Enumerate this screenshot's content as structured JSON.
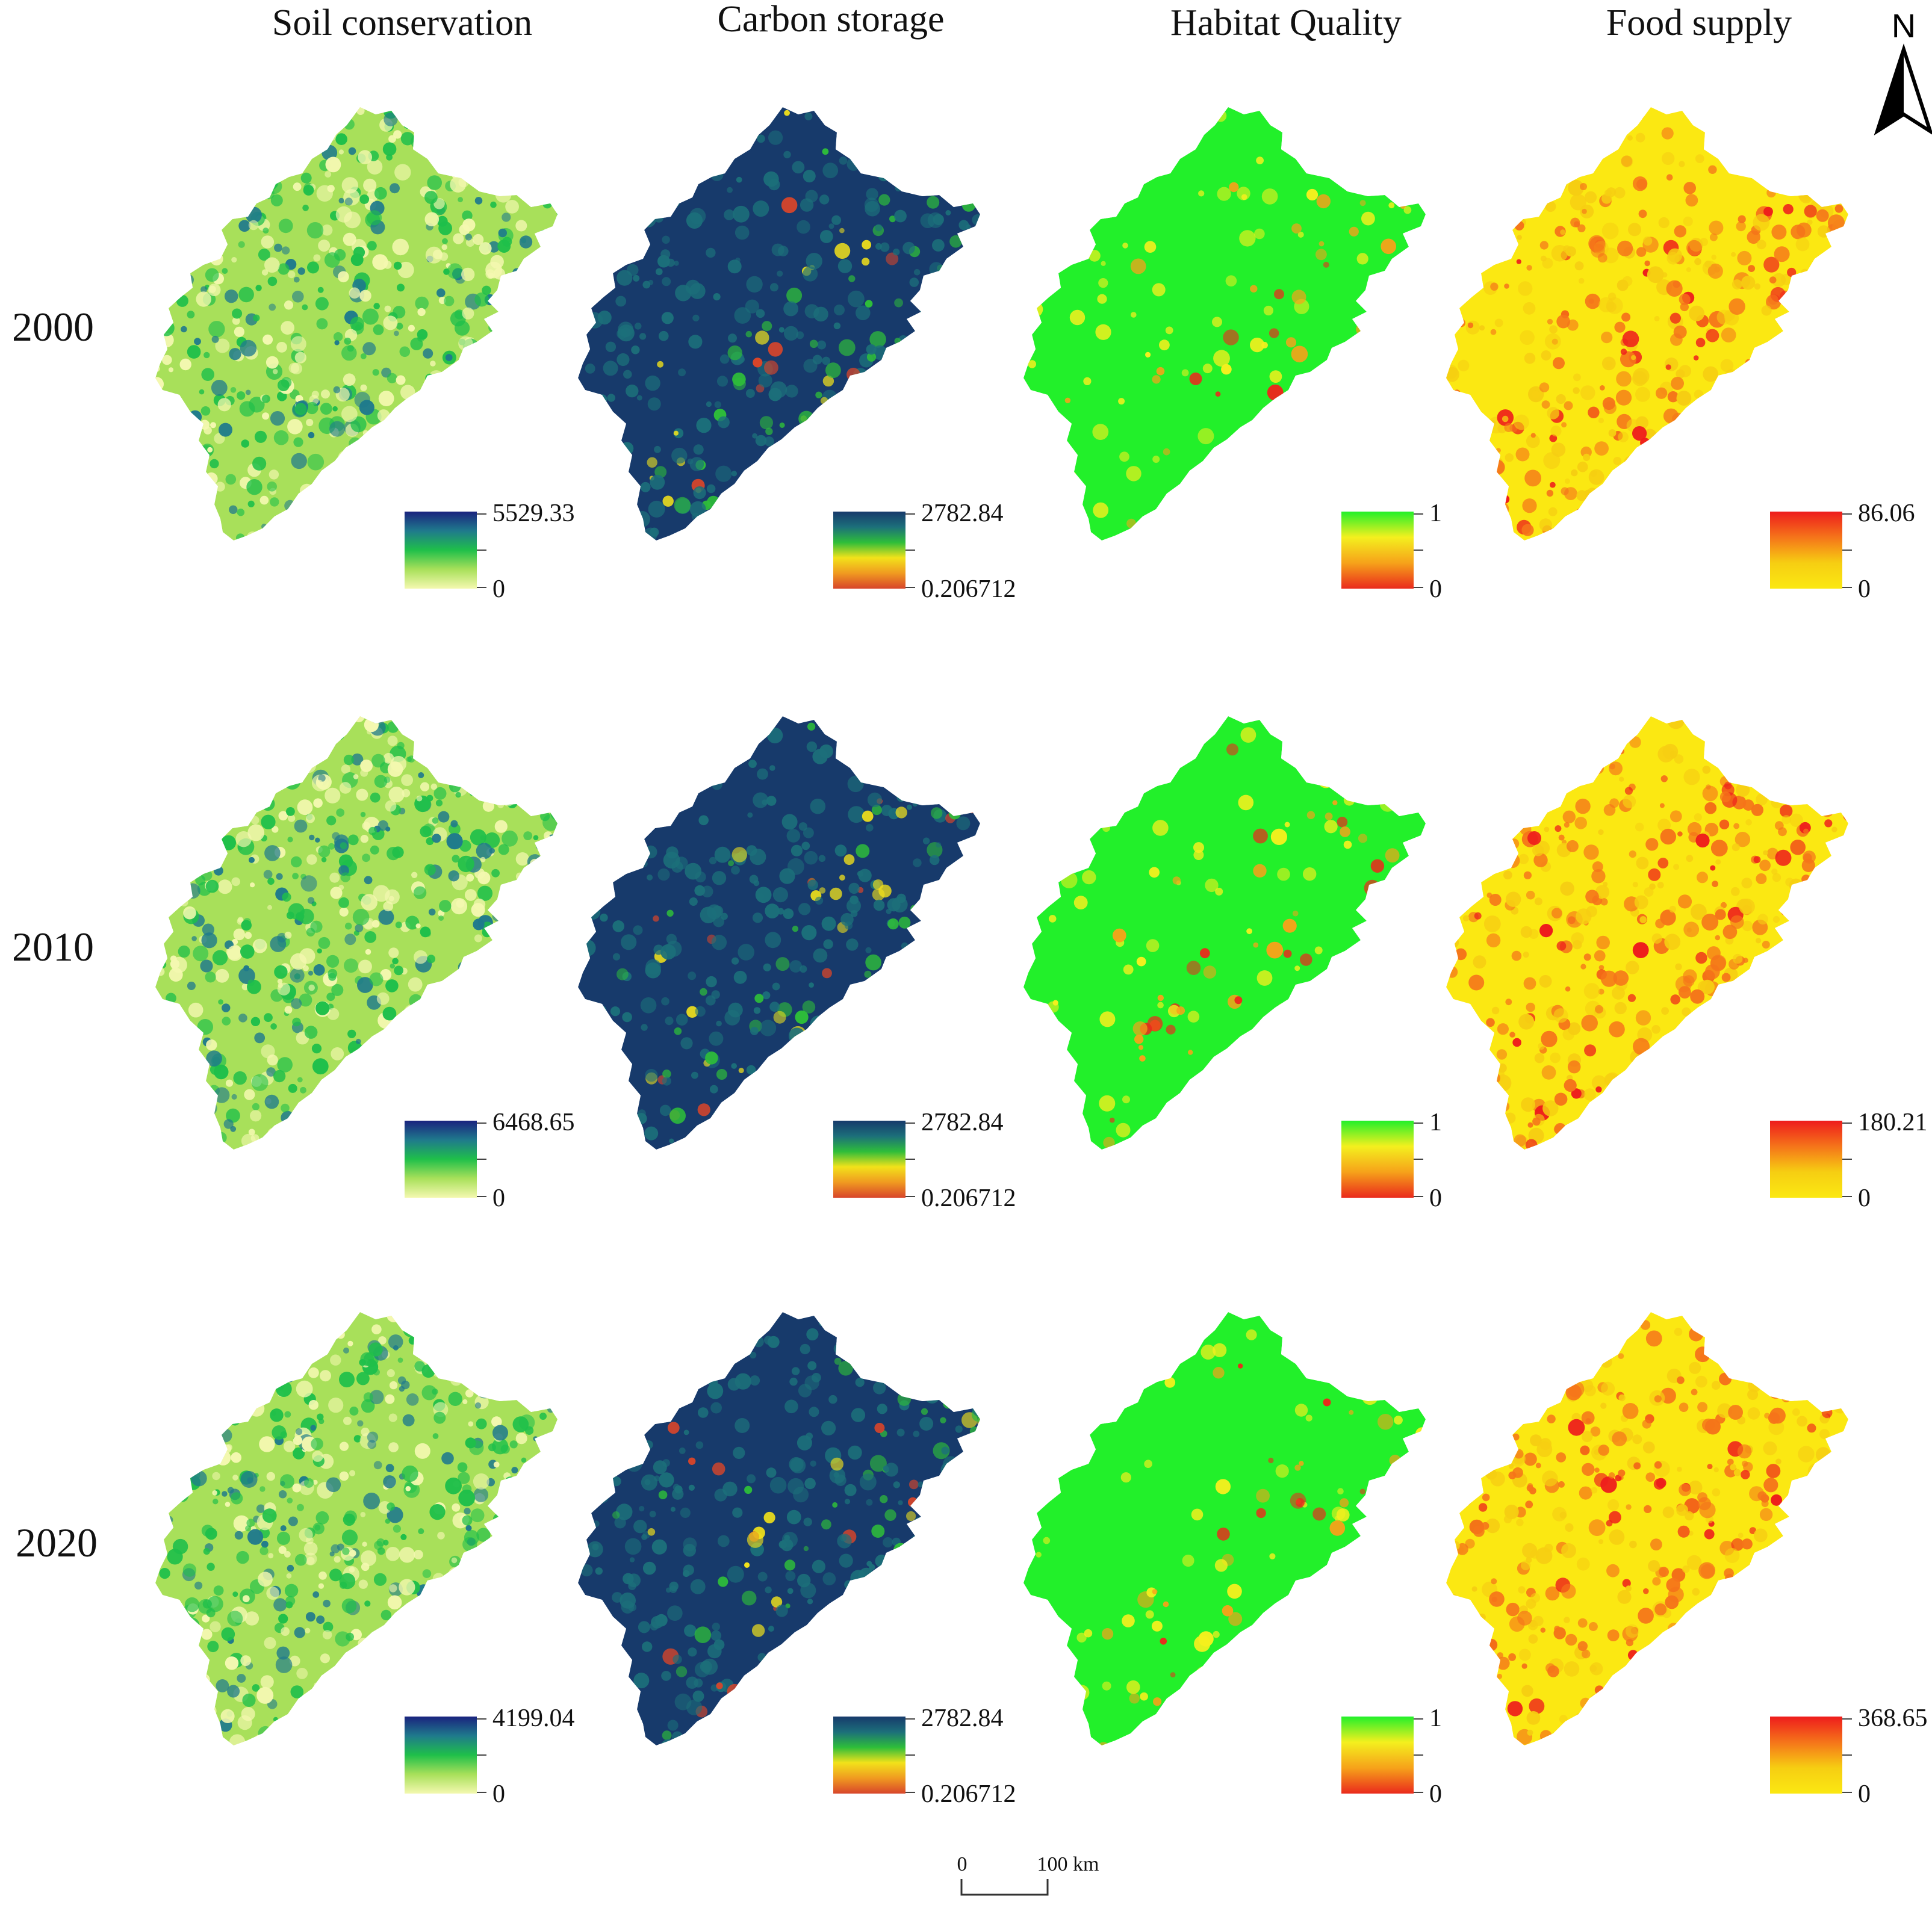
{
  "columns": [
    {
      "key": "soil",
      "title": "Soil conservation"
    },
    {
      "key": "carbon",
      "title": "Carbon storage"
    },
    {
      "key": "habitat",
      "title": "Habitat Quality"
    },
    {
      "key": "food",
      "title": "Food supply"
    }
  ],
  "rows": [
    {
      "year": "2000",
      "legends": {
        "soil": {
          "max": "5529.33",
          "min": "0"
        },
        "carbon": {
          "max": "2782.84",
          "min": "0.206712"
        },
        "habitat": {
          "max": "1",
          "min": "0"
        },
        "food": {
          "max": "86.06",
          "min": "0"
        }
      }
    },
    {
      "year": "2010",
      "legends": {
        "soil": {
          "max": "6468.65",
          "min": "0"
        },
        "carbon": {
          "max": "2782.84",
          "min": "0.206712"
        },
        "habitat": {
          "max": "1",
          "min": "0"
        },
        "food": {
          "max": "180.21",
          "min": "0"
        }
      }
    },
    {
      "year": "2020",
      "legends": {
        "soil": {
          "max": "4199.04",
          "min": "0"
        },
        "carbon": {
          "max": "2782.84",
          "min": "0.206712"
        },
        "habitat": {
          "max": "1",
          "min": "0"
        },
        "food": {
          "max": "368.65",
          "min": "0"
        }
      }
    }
  ],
  "palettes": {
    "soil": [
      "#1a237e",
      "#1f7a8c",
      "#1fbf4a",
      "#a8e05a",
      "#f4f8b0"
    ],
    "carbon": [
      "#173a6b",
      "#1c6f7a",
      "#2ebd3a",
      "#f2e21a",
      "#f09a20",
      "#d8452a"
    ],
    "habitat": [
      "#22f02a",
      "#f4f01e",
      "#f6a21a",
      "#ea2a1c"
    ],
    "food": [
      "#ee1c1c",
      "#f5741a",
      "#f6ce12",
      "#fbe812"
    ]
  },
  "scale_bar": {
    "start": "0",
    "end": "100 km"
  },
  "north_arrow": {
    "label": "N"
  }
}
